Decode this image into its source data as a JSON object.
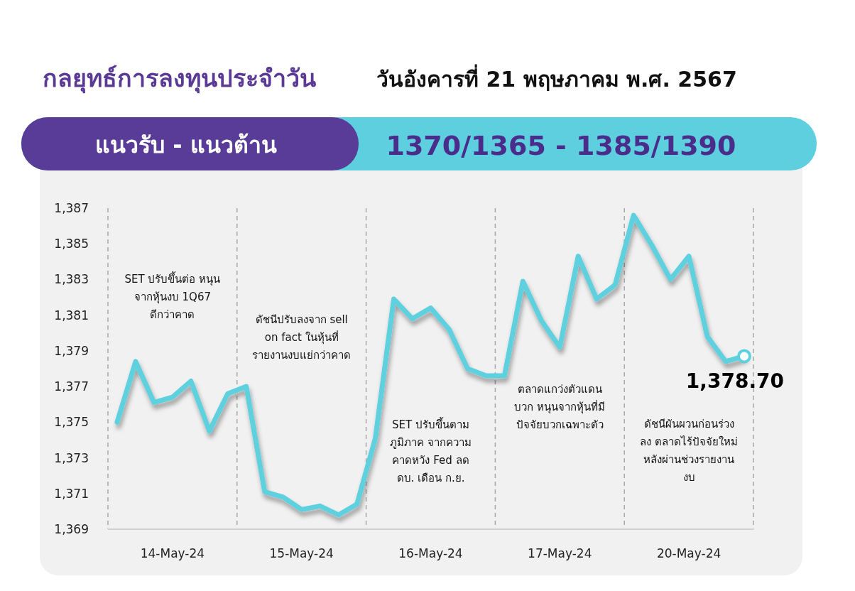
{
  "chart_data": {
    "type": "line",
    "title": "กลยุทธ์การลงทุนประจำวัน",
    "subtitle": "วันอังคารที่ 21 พฤษภาคม พ.ศ. 2567",
    "annotations": [
      "แนวรับ - แนวต้าน",
      "1370/1365  - 1385/1390",
      "SET ปรับขึ้นต่อ หนุน\nจากหุ้นงบ 1Q67\nดีกว่าคาด",
      "ดัชนีปรับลงจาก sell\non fact ในหุ้นที่\nรายงานงบแย่กว่าคาด",
      "SET ปรับขึ้นตาม\nภูมิภาค จากความ\nคาดหวัง Fed ลด\nดบ. เดือน ก.ย.",
      "ตลาดแกว่งตัวแดน\nบวก หนุนจากหุ้นที่มี\nปัจจัยบวกเฉพาะตัว",
      "ดัชนีผันผวนก่อนร่วง\nลง ตลาดไร้ปัจจัยใหม่\nหลังผ่านช่วงรายงาน\nงบ"
    ],
    "categories": [
      null,
      null,
      null,
      "14-May-24",
      null,
      null,
      null,
      null,
      null,
      null,
      "15-May-24",
      null,
      null,
      null,
      null,
      null,
      null,
      "16-May-24",
      null,
      null,
      null,
      null,
      null,
      null,
      "17-May-24",
      null,
      null,
      null,
      null,
      null,
      null,
      "20-May-24",
      null,
      null,
      null
    ],
    "series": [
      {
        "color": "#5fd0de",
        "values": [
          1375.0,
          1378.4,
          1376.1,
          1376.4,
          1377.3,
          1374.5,
          1376.6,
          1377.0,
          1371.1,
          1370.8,
          1370.1,
          1370.3,
          1369.8,
          1370.4,
          1374.1,
          1381.9,
          1380.8,
          1381.4,
          1380.2,
          1378.0,
          1377.6,
          1377.6,
          1382.9,
          1380.7,
          1379.2,
          1384.3,
          1381.9,
          1382.7,
          1386.6,
          1384.9,
          1383.0,
          1384.3,
          1379.8,
          1378.4,
          1378.7
        ],
        "value_labels": [
          null,
          null,
          null,
          null,
          null,
          null,
          null,
          null,
          null,
          null,
          null,
          null,
          null,
          null,
          null,
          null,
          null,
          null,
          null,
          null,
          null,
          null,
          null,
          null,
          null,
          null,
          null,
          null,
          null,
          null,
          null,
          null,
          null,
          null,
          "1,378.70"
        ]
      }
    ],
    "ylim": [
      1369,
      1387
    ],
    "yticks": [
      {
        "value": 1369,
        "label": "1,369"
      },
      {
        "value": 1371,
        "label": "1,371"
      },
      {
        "value": 1373,
        "label": "1,373"
      },
      {
        "value": 1375,
        "label": "1,375"
      },
      {
        "value": 1377,
        "label": "1,377"
      },
      {
        "value": 1379,
        "label": "1,379"
      },
      {
        "value": 1381,
        "label": "1,381"
      },
      {
        "value": 1383,
        "label": "1,383"
      },
      {
        "value": 1385,
        "label": "1,385"
      },
      {
        "value": 1387,
        "label": "1,387"
      }
    ],
    "grid": false,
    "marker": "none",
    "line_style": "solid"
  }
}
